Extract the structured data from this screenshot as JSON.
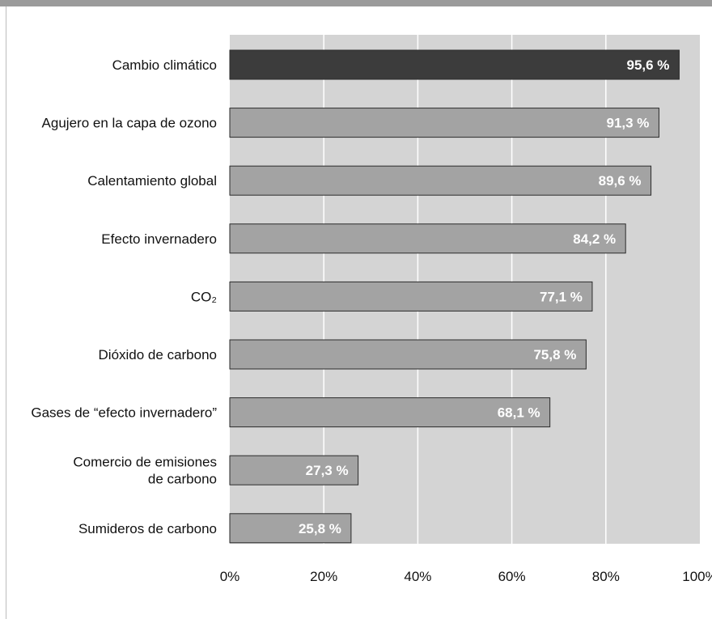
{
  "chart_data": {
    "type": "bar",
    "orientation": "horizontal",
    "categories": [
      "Cambio climático",
      "Agujero en la capa de ozono",
      "Calentamiento global",
      "Efecto invernadero",
      "CO₂",
      "Dióxido de carbono",
      "Gases de “efecto invernadero”",
      "Comercio de emisiones de carbono",
      "Sumideros de carbono"
    ],
    "category_lines": [
      [
        "Cambio climático"
      ],
      [
        "Agujero en la capa de ozono"
      ],
      [
        "Calentamiento global"
      ],
      [
        "Efecto invernadero"
      ],
      [
        "CO₂"
      ],
      [
        "Dióxido de carbono"
      ],
      [
        "Gases de “efecto invernadero”"
      ],
      [
        "Comercio de emisiones",
        "de carbono"
      ],
      [
        "Sumideros de carbono"
      ]
    ],
    "values": [
      95.6,
      91.3,
      89.6,
      84.2,
      77.1,
      75.8,
      68.1,
      27.3,
      25.8
    ],
    "value_labels": [
      "95,6 %",
      "91,3 %",
      "89,6 %",
      "84,2 %",
      "77,1 %",
      "75,8 %",
      "68,1 %",
      "27,3 %",
      "25,8 %"
    ],
    "highlight_index": 0,
    "x_ticks": [
      0,
      20,
      40,
      60,
      80,
      100
    ],
    "x_tick_labels": [
      "0%",
      "20%",
      "40%",
      "60%",
      "80%",
      "100%"
    ],
    "xlim": [
      0,
      100
    ],
    "grid": true,
    "title": "",
    "xlabel": "",
    "ylabel": "",
    "colors": {
      "background_panel": "#d4d4d4",
      "gridline": "#ffffff",
      "bar": "#a3a3a3",
      "bar_highlight": "#3c3c3c",
      "bar_border": "#2b2b2b",
      "value_text": "#ffffff",
      "top_bar": "#9b9b9b"
    }
  }
}
